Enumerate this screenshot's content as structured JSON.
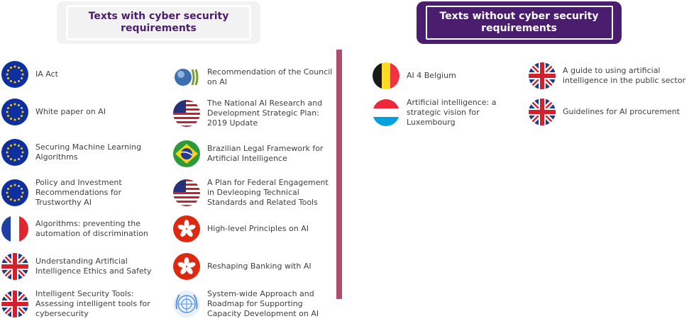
{
  "headers": {
    "with": "Texts with cyber security requirements",
    "without": "Texts without cyber security requirements"
  },
  "colors": {
    "accent": "#4b1d6e",
    "divider": "#b14d6c"
  },
  "with_cyber": {
    "col1": [
      {
        "flag": "eu-flag-icon",
        "label": "IA Act"
      },
      {
        "flag": "eu-flag-icon",
        "label": "White paper on AI"
      },
      {
        "flag": "eu-flag-icon",
        "label": "Securing Machine Learning Algorithms"
      },
      {
        "flag": "eu-flag-icon",
        "label": "Policy and Investment Recommendations for Trustworthy AI"
      },
      {
        "flag": "france-flag-icon",
        "label": "Algorithms: preventing the automation of discrimination"
      },
      {
        "flag": "uk-flag-icon",
        "label": "Understanding Artificial Intelligence Ethics and Safety"
      },
      {
        "flag": "uk-flag-icon",
        "label": "Intelligent Security Tools: Assessing intelligent tools for cybersecurity"
      }
    ],
    "col2": [
      {
        "flag": "oecd-logo-icon",
        "label": "Recommendation of the Council on AI"
      },
      {
        "flag": "usa-flag-icon",
        "label": "The National AI Research and Development Strategic Plan: 2019 Update"
      },
      {
        "flag": "brazil-flag-icon",
        "label": "Brazilian Legal Framework for Artificial Intelligence"
      },
      {
        "flag": "usa-flag-icon",
        "label": "A Plan for Federal Engagement in Devleoping Technical Standards and Related Tools"
      },
      {
        "flag": "hong-kong-flag-icon",
        "label": "High-level Principles on AI"
      },
      {
        "flag": "hong-kong-flag-icon",
        "label": "Reshaping Banking with AI"
      },
      {
        "flag": "un-emblem-icon",
        "label": "System-wide Approach and Roadmap for Supporting Capacity Development on AI"
      }
    ]
  },
  "without_cyber": {
    "col1": [
      {
        "flag": "belgium-flag-icon",
        "label": "AI 4 Belgium"
      },
      {
        "flag": "luxembourg-flag-icon",
        "label": "Artificial intelligence: a strategic vision for Luxembourg"
      }
    ],
    "col2": [
      {
        "flag": "uk-flag-icon",
        "label": "A guide to using artificial intelligence in the public sector"
      },
      {
        "flag": "uk-flag-icon",
        "label": "Guidelines for AI procurement"
      }
    ]
  }
}
